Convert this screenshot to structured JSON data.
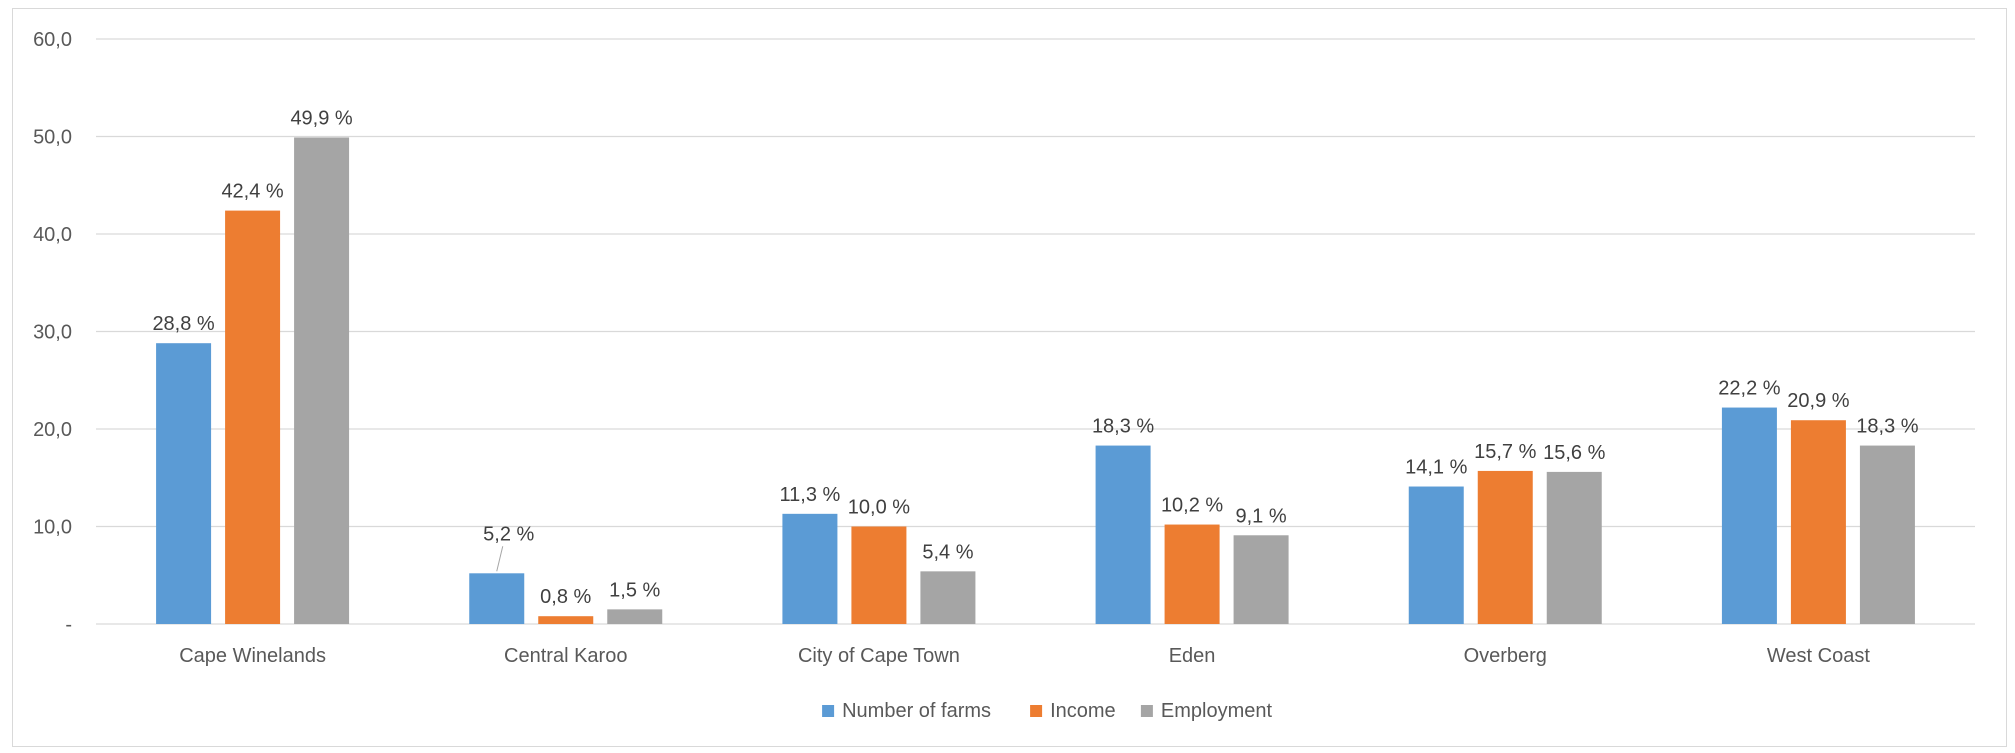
{
  "chart_data": {
    "type": "bar",
    "title": "",
    "xlabel": "",
    "ylabel": "",
    "categories": [
      "Cape Winelands",
      "Central Karoo",
      "City of Cape Town",
      "Eden",
      "Overberg",
      "West Coast"
    ],
    "series": [
      {
        "name": "Number of farms",
        "color": "#5B9BD5",
        "values": [
          28.8,
          5.2,
          11.3,
          18.3,
          14.1,
          22.2
        ],
        "labels": [
          "28,8 %",
          "5,2 %",
          "11,3 %",
          "18,3 %",
          "14,1 %",
          "22,2 %"
        ]
      },
      {
        "name": "Income",
        "color": "#ED7D31",
        "values": [
          42.4,
          0.8,
          10.0,
          10.2,
          15.7,
          20.9
        ],
        "labels": [
          "42,4 %",
          "0,8 %",
          "10,0 %",
          "10,2 %",
          "15,7 %",
          "20,9 %"
        ]
      },
      {
        "name": "Employment",
        "color": "#A5A5A5",
        "values": [
          49.9,
          1.5,
          5.4,
          9.1,
          15.6,
          18.3
        ],
        "labels": [
          "49,9 %",
          "1,5 %",
          "5,4 %",
          "9,1 %",
          "15,6 %",
          "18,3 %"
        ]
      }
    ],
    "ylim": [
      0,
      60
    ],
    "y_ticks": [
      0,
      10,
      20,
      30,
      40,
      50,
      60
    ],
    "y_tick_labels": [
      "-",
      "10,0",
      "20,0",
      "30,0",
      "40,0",
      "50,0",
      "60,0"
    ],
    "grid": true,
    "legend": "bottom-center"
  }
}
